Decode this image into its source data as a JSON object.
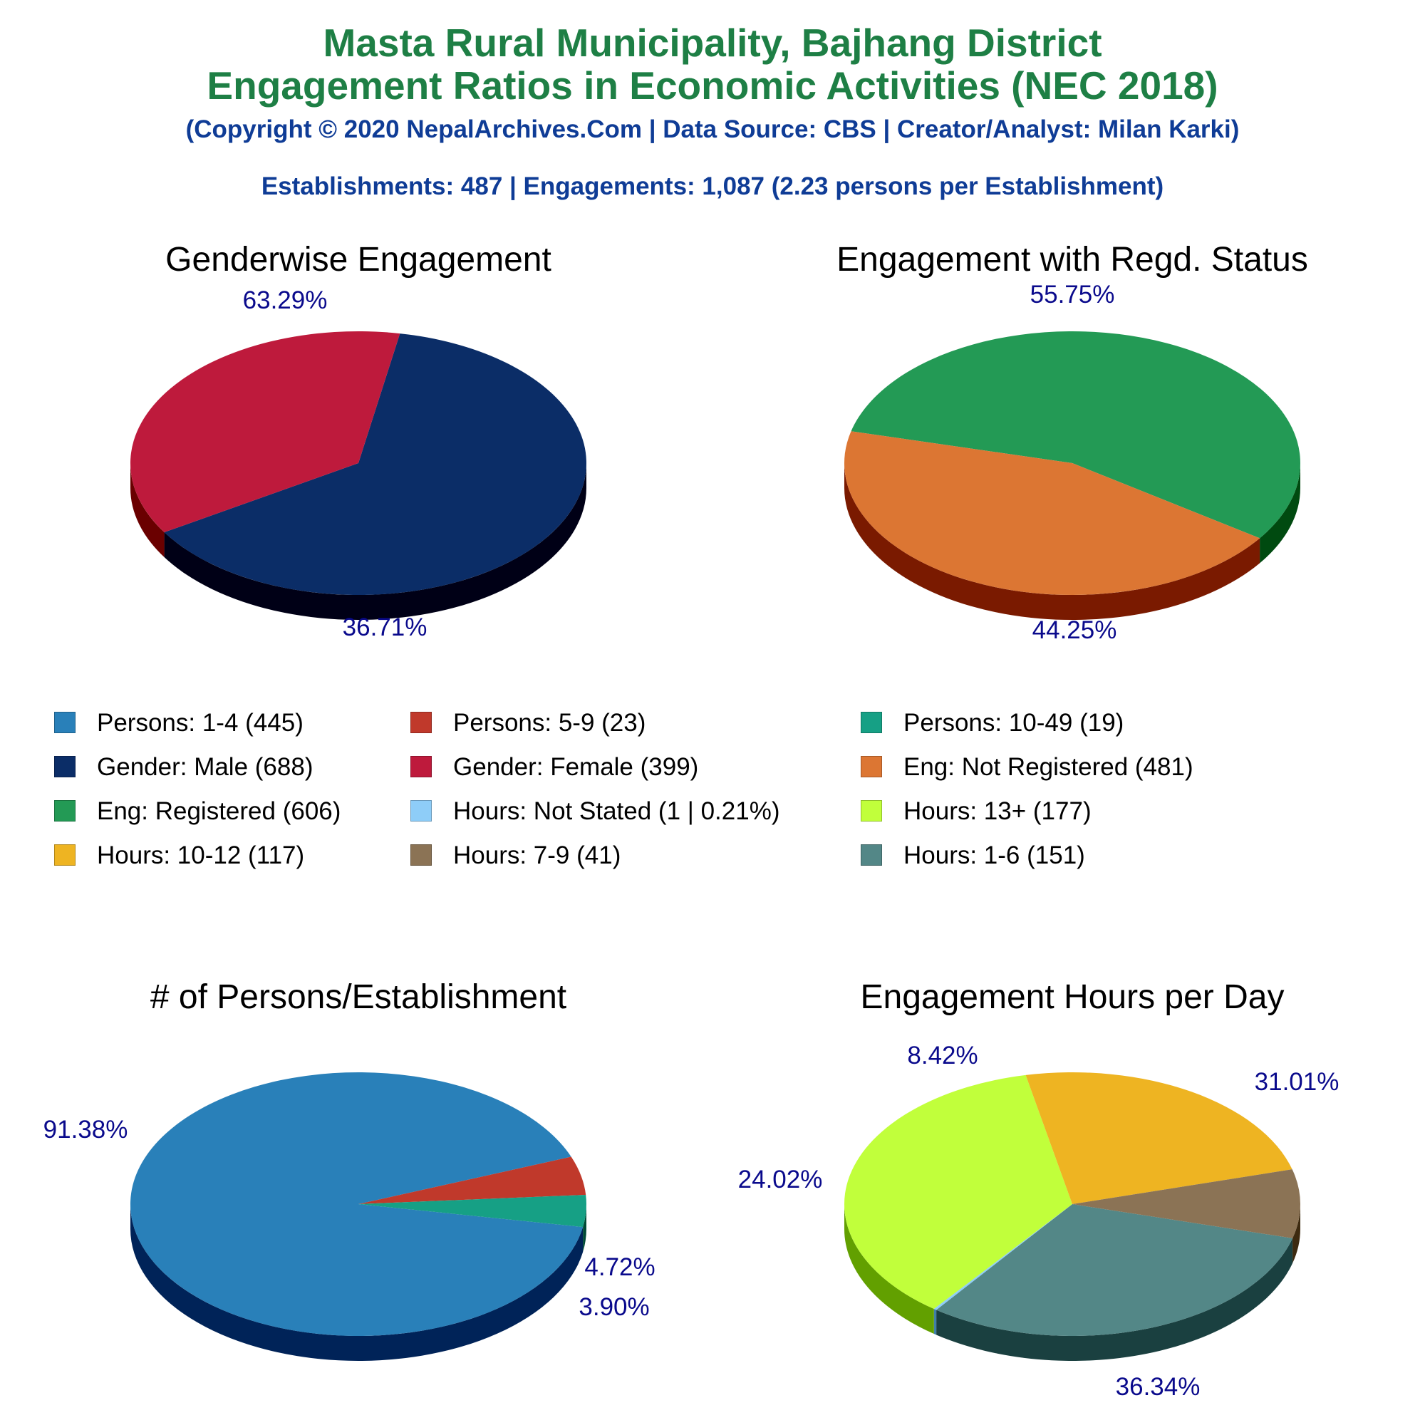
{
  "header": {
    "title_line1": "Masta Rural Municipality, Bajhang District",
    "title_line2": "Engagement Ratios in Economic Activities (NEC 2018)",
    "copyright": "(Copyright © 2020 NepalArchives.Com | Data Source: CBS | Creator/Analyst: Milan Karki)",
    "summary": "Establishments: 487 | Engagements: 1,087 (2.23 persons per Establishment)"
  },
  "colors": {
    "title": "#1e7f45",
    "subtitle": "#0f3c96",
    "slice_label": "#0a0a8c"
  },
  "chart_data": [
    {
      "type": "pie",
      "title": "Genderwise Engagement",
      "slices": [
        {
          "name": "Gender: Male",
          "value": 688,
          "label": "63.29%",
          "color": "#0b2d67",
          "side": "#000016"
        },
        {
          "name": "Gender: Female",
          "value": 399,
          "label": "36.71%",
          "color": "#be1a3c",
          "side": "#6a0000"
        }
      ]
    },
    {
      "type": "pie",
      "title": "Engagement with Regd. Status",
      "slices": [
        {
          "name": "Eng: Registered",
          "value": 606,
          "label": "55.75%",
          "color": "#239a55",
          "side": "#004a10"
        },
        {
          "name": "Eng: Not Registered",
          "value": 481,
          "label": "44.25%",
          "color": "#dc7633",
          "side": "#7a1a00"
        }
      ]
    },
    {
      "type": "pie",
      "title": "# of Persons/Establishment",
      "slices": [
        {
          "name": "Persons: 1-4",
          "value": 445,
          "label": "91.38%",
          "color": "#2980b9",
          "side": "#002358"
        },
        {
          "name": "Persons: 5-9",
          "value": 23,
          "label": "4.72%",
          "color": "#c0392b",
          "side": "#6a0000"
        },
        {
          "name": "Persons: 10-49",
          "value": 19,
          "label": "3.90%",
          "color": "#16a085",
          "side": "#004a35"
        }
      ]
    },
    {
      "type": "pie",
      "title": "Engagement Hours per Day",
      "slices": [
        {
          "name": "Hours: 1-6",
          "value": 151,
          "label": "31.01%",
          "color": "#538787",
          "side": "#1a4040"
        },
        {
          "name": "Hours: Not Stated",
          "value": 1,
          "label": "",
          "color": "#8ecdf8",
          "side": "#4080a8"
        },
        {
          "name": "Hours: 13+",
          "value": 177,
          "label": "36.34%",
          "color": "#c1ff3b",
          "side": "#62a000"
        },
        {
          "name": "Hours: 10-12",
          "value": 117,
          "label": "24.02%",
          "color": "#eeb422",
          "side": "#8a5a00"
        },
        {
          "name": "Hours: 7-9",
          "value": 41,
          "label": "8.42%",
          "color": "#8b7355",
          "side": "#3d2a10"
        }
      ]
    }
  ],
  "legend": [
    {
      "label": "Persons: 1-4 (445)",
      "color": "#2980b9"
    },
    {
      "label": "Persons: 5-9 (23)",
      "color": "#c0392b"
    },
    {
      "label": "Persons: 10-49 (19)",
      "color": "#16a085"
    },
    {
      "label": "Gender: Male (688)",
      "color": "#0b2d67"
    },
    {
      "label": "Gender: Female (399)",
      "color": "#be1a3c"
    },
    {
      "label": "Eng: Not Registered (481)",
      "color": "#dc7633"
    },
    {
      "label": "Eng: Registered (606)",
      "color": "#239a55"
    },
    {
      "label": "Hours: Not Stated (1 | 0.21%)",
      "color": "#8ecdf8"
    },
    {
      "label": "Hours: 13+ (177)",
      "color": "#c1ff3b"
    },
    {
      "label": "Hours: 10-12 (117)",
      "color": "#eeb422"
    },
    {
      "label": "Hours: 7-9 (41)",
      "color": "#8b7355"
    },
    {
      "label": "Hours: 1-6 (151)",
      "color": "#538787"
    }
  ]
}
